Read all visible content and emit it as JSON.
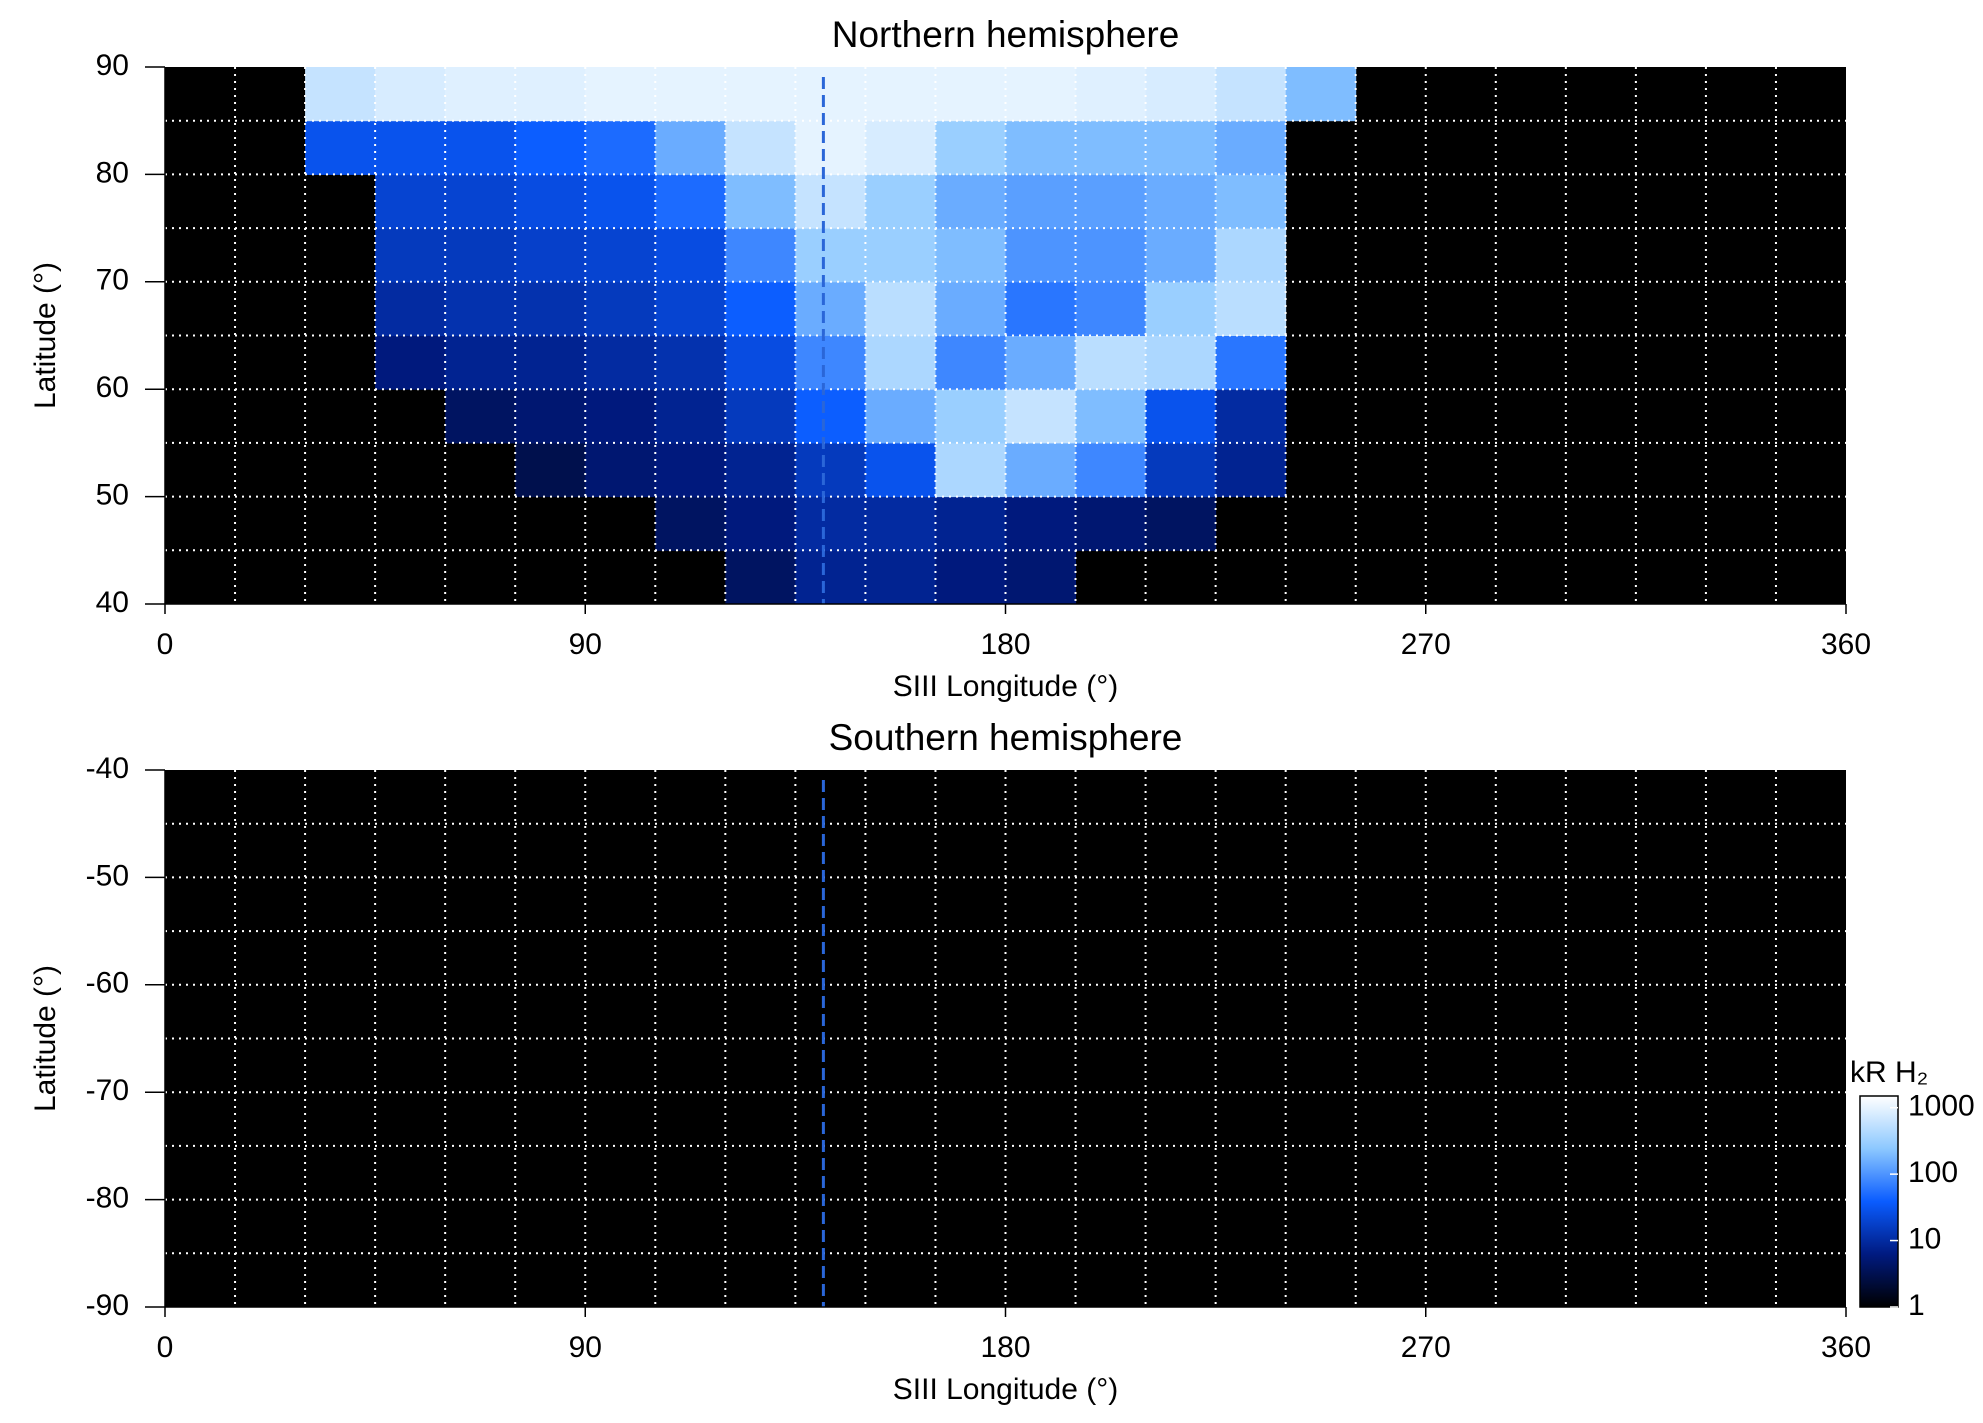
{
  "chart_data": [
    {
      "type": "heatmap",
      "title": "Northern hemisphere",
      "xlabel": "SIII Longitude (°)",
      "ylabel": "Latitude (°)",
      "xlim": [
        0,
        360
      ],
      "ylim": [
        40,
        90
      ],
      "xticks": [
        0,
        90,
        180,
        270,
        360
      ],
      "yticks": [
        40,
        50,
        60,
        70,
        80,
        90
      ],
      "xgrid": [
        15,
        30,
        45,
        60,
        75,
        90,
        105,
        120,
        135,
        150,
        165,
        180,
        195,
        210,
        225,
        240,
        255,
        270,
        285,
        300,
        315,
        330,
        345
      ],
      "ygrid": [
        45,
        50,
        55,
        60,
        65,
        70,
        75,
        80,
        85
      ],
      "marker_x": 141,
      "marker_color": "#2a66d8",
      "z_x": [
        0,
        15,
        30,
        45,
        60,
        75,
        90,
        105,
        120,
        135,
        150,
        165,
        180,
        195,
        210,
        225,
        240,
        255,
        270,
        285,
        300,
        315,
        330,
        345,
        360
      ],
      "z_y": [
        40,
        45,
        50,
        55,
        60,
        65,
        70,
        75,
        80,
        85,
        90
      ],
      "z": [
        [
          null,
          null,
          null,
          null,
          null,
          null,
          null,
          null,
          4,
          8,
          8,
          6,
          5,
          null,
          null,
          null,
          null,
          null,
          null,
          null,
          null,
          null,
          null,
          null
        ],
        [
          null,
          null,
          null,
          null,
          null,
          null,
          null,
          4,
          6,
          10,
          10,
          8,
          6,
          5,
          4,
          null,
          null,
          null,
          null,
          null,
          null,
          null,
          null,
          null
        ],
        [
          null,
          null,
          null,
          null,
          null,
          3,
          5,
          6,
          8,
          15,
          30,
          400,
          150,
          80,
          15,
          8,
          null,
          null,
          null,
          null,
          null,
          null,
          null,
          null
        ],
        [
          null,
          null,
          null,
          null,
          4,
          5,
          6,
          8,
          15,
          40,
          150,
          300,
          600,
          200,
          30,
          10,
          null,
          null,
          null,
          null,
          null,
          null,
          null,
          null
        ],
        [
          null,
          null,
          null,
          6,
          8,
          8,
          10,
          12,
          25,
          80,
          400,
          80,
          150,
          500,
          400,
          60,
          null,
          null,
          null,
          null,
          null,
          null,
          null,
          null
        ],
        [
          null,
          null,
          null,
          10,
          12,
          12,
          15,
          20,
          40,
          150,
          500,
          150,
          60,
          80,
          300,
          500,
          null,
          null,
          null,
          null,
          null,
          null,
          null,
          null
        ],
        [
          null,
          null,
          null,
          15,
          15,
          18,
          20,
          25,
          80,
          300,
          300,
          200,
          100,
          100,
          150,
          400,
          null,
          null,
          null,
          null,
          null,
          null,
          null,
          null
        ],
        [
          null,
          null,
          null,
          20,
          20,
          25,
          30,
          50,
          200,
          600,
          300,
          150,
          120,
          120,
          150,
          200,
          null,
          null,
          null,
          null,
          null,
          null,
          null,
          null
        ],
        [
          null,
          null,
          30,
          30,
          30,
          40,
          50,
          150,
          600,
          1000,
          800,
          300,
          200,
          200,
          200,
          150,
          null,
          null,
          null,
          null,
          null,
          null,
          null,
          null
        ],
        [
          null,
          null,
          600,
          800,
          900,
          900,
          1000,
          1000,
          1000,
          1000,
          1000,
          1000,
          1000,
          900,
          800,
          600,
          200,
          null,
          null,
          null,
          null,
          null,
          null,
          null
        ]
      ],
      "colormap": [
        "#000000",
        "#001a80",
        "#0a5cff",
        "#8cc8ff",
        "#ffffff"
      ],
      "clim": [
        1,
        1500
      ],
      "log": true
    },
    {
      "type": "heatmap",
      "title": "Southern hemisphere",
      "xlabel": "SIII Longitude (°)",
      "ylabel": "Latitude (°)",
      "xlim": [
        0,
        360
      ],
      "ylim": [
        -90,
        -40
      ],
      "xticks": [
        0,
        90,
        180,
        270,
        360
      ],
      "yticks": [
        -90,
        -80,
        -70,
        -60,
        -50,
        -40
      ],
      "xgrid": [
        15,
        30,
        45,
        60,
        75,
        90,
        105,
        120,
        135,
        150,
        165,
        180,
        195,
        210,
        225,
        240,
        255,
        270,
        285,
        300,
        315,
        330,
        345
      ],
      "ygrid": [
        -85,
        -80,
        -75,
        -70,
        -65,
        -60,
        -55,
        -50,
        -45
      ],
      "marker_x": 141,
      "marker_color": "#2a66d8",
      "colorbar": {
        "label": "kR H₂",
        "ticks": [
          1,
          10,
          100,
          1000
        ],
        "lim": [
          1,
          1500
        ],
        "log": true,
        "colormap": [
          "#000000",
          "#001a80",
          "#0a5cff",
          "#8cc8ff",
          "#ffffff"
        ]
      }
    }
  ]
}
